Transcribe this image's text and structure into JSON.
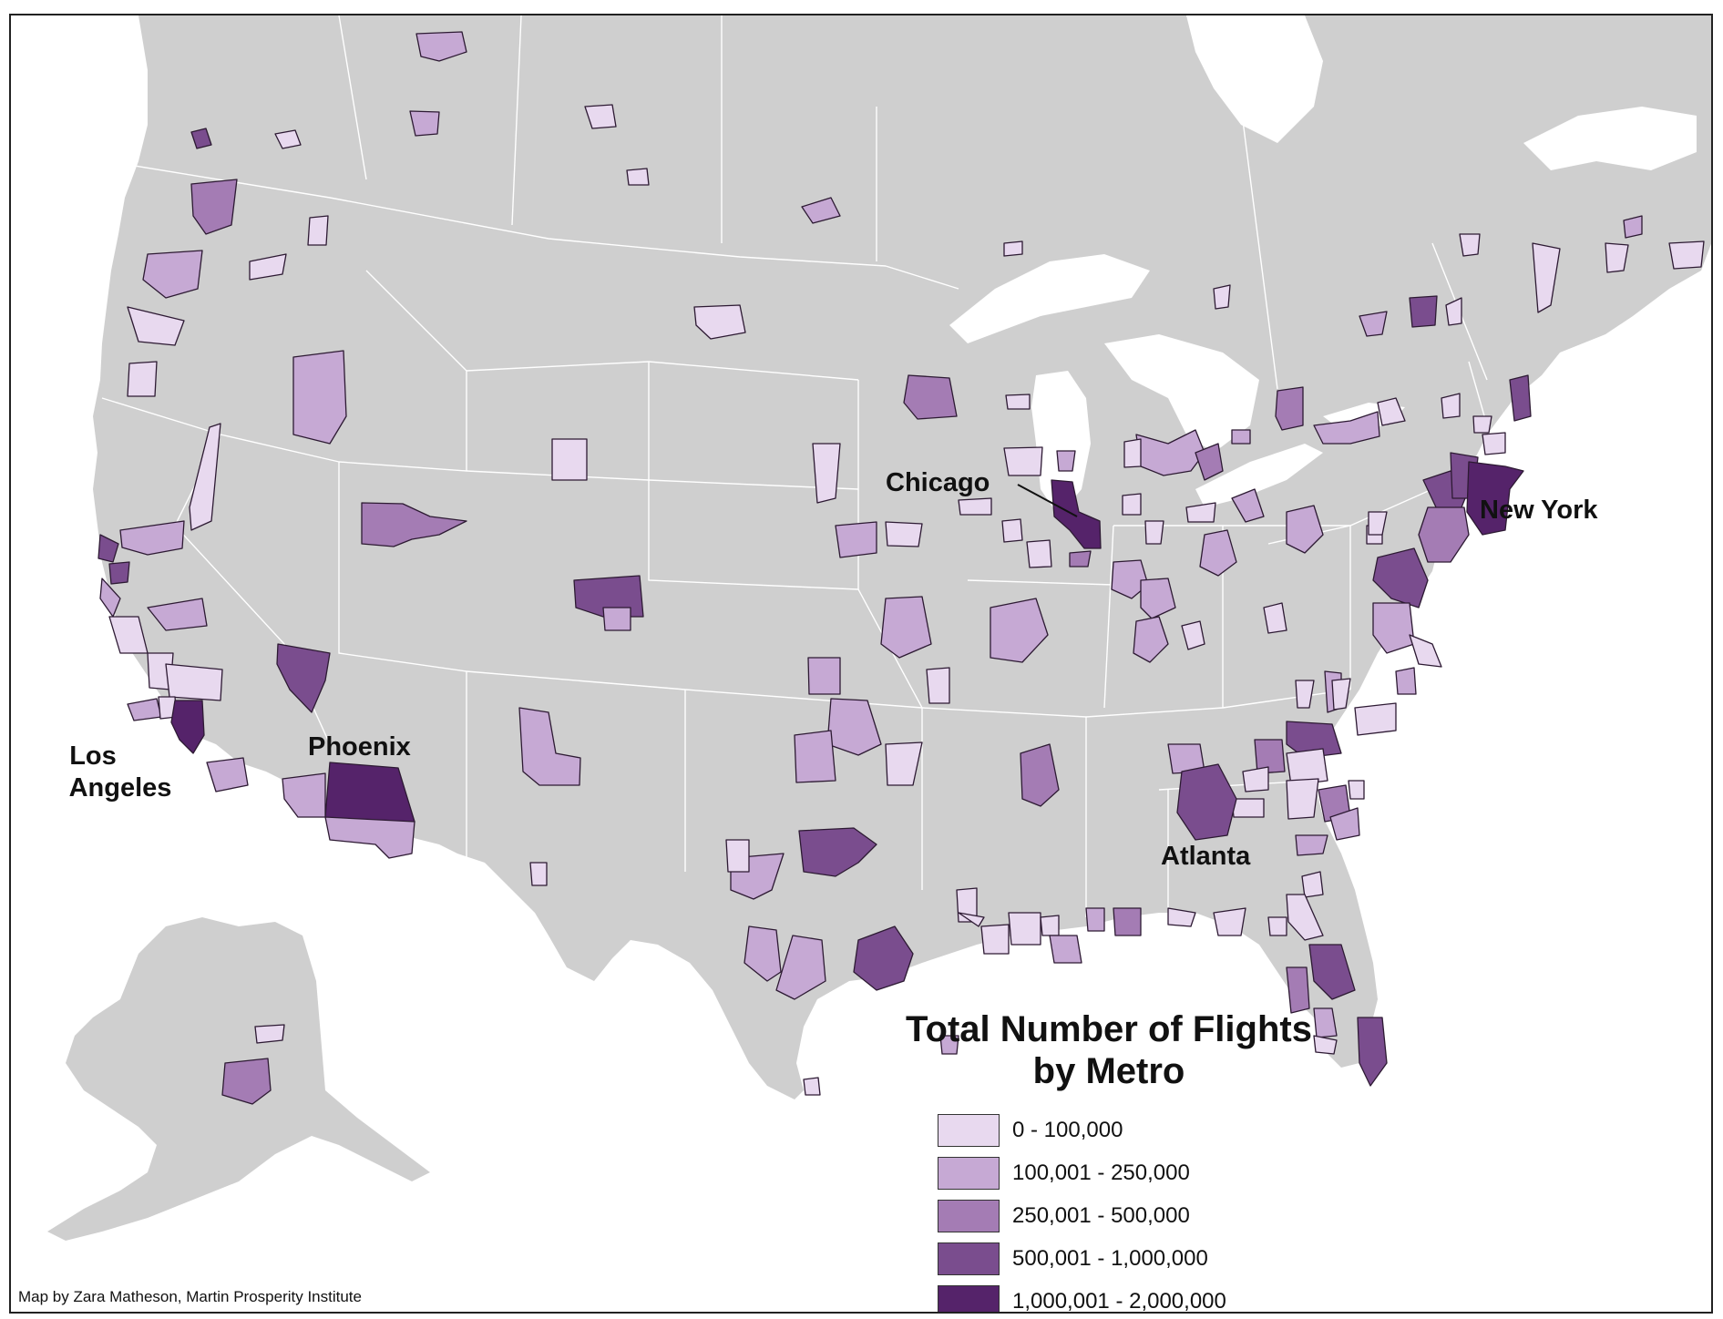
{
  "map": {
    "title": "Total Number of Flights by Metro",
    "title_lines": [
      "Total Number of Flights",
      "by Metro"
    ],
    "credit": "Map by Zara Matheson, Martin Prosperity Institute",
    "city_labels": {
      "chicago": "Chicago",
      "new_york": "New York",
      "phoenix": "Phoenix",
      "los_angeles_1": "Los",
      "los_angeles_2": "Angeles",
      "atlanta": "Atlanta"
    },
    "legend": [
      {
        "label": "0 - 100,000",
        "color": "#e8d9ef"
      },
      {
        "label": "100,001 - 250,000",
        "color": "#c6a9d4"
      },
      {
        "label": "250,001 - 500,000",
        "color": "#a47cb4"
      },
      {
        "label": "500,001 - 1,000,000",
        "color": "#7a4d8e"
      },
      {
        "label": "1,000,001 - 2,000,000",
        "color": "#55236a"
      }
    ],
    "colors": {
      "land": "#cfcfcf",
      "water": "#ffffff",
      "borders": "#ffffff",
      "metro_outline": "#2d1a33"
    }
  }
}
